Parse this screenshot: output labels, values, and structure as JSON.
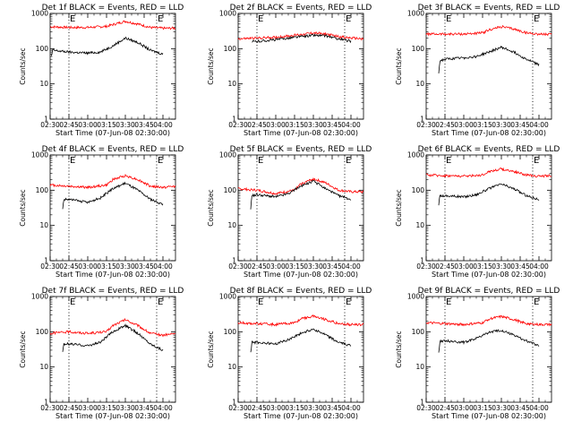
{
  "figure": {
    "colors": {
      "events": "#000000",
      "lld": "#ff0000",
      "axes": "#000000",
      "background": "#ffffff"
    }
  },
  "chart_data": [
    {
      "type": "line",
      "title": "Det 1f BLACK = Events, RED = LLD",
      "xlabel": "Start Time (07-Jun-08 02:30:00)",
      "ylabel": "Counts/sec",
      "yscale": "log",
      "ylim": [
        1,
        1000
      ],
      "xlim": [
        "02:30",
        "04:10"
      ],
      "x_ticks": [
        "02:30",
        "02:45",
        "03:00",
        "03:15",
        "03:30",
        "03:45",
        "04:00"
      ],
      "y_ticks": [
        "1",
        "10",
        "100",
        "1000"
      ],
      "markers": [
        {
          "label": "E",
          "x": "02:45"
        },
        {
          "label": "E",
          "x": "03:55"
        }
      ],
      "grid": false,
      "series": [
        {
          "color": "red",
          "x": [
            "02:30",
            "02:45",
            "03:00",
            "03:15",
            "03:20",
            "03:30",
            "03:40",
            "03:50",
            "04:00",
            "04:10"
          ],
          "values": [
            420,
            400,
            400,
            430,
            480,
            600,
            500,
            400,
            380,
            380
          ]
        },
        {
          "color": "black",
          "x": [
            "02:31",
            "02:32",
            "02:45",
            "03:00",
            "03:10",
            "03:20",
            "03:30",
            "03:40",
            "03:50",
            "04:00"
          ],
          "values": [
            60,
            90,
            80,
            75,
            80,
            120,
            200,
            150,
            90,
            70
          ]
        }
      ]
    },
    {
      "type": "line",
      "title": "Det 2f BLACK = Events, RED = LLD",
      "xlabel": "Start Time (07-Jun-08 02:30:00)",
      "ylabel": "Counts/sec",
      "yscale": "log",
      "ylim": [
        1,
        1000
      ],
      "xlim": [
        "02:30",
        "04:10"
      ],
      "x_ticks": [
        "02:30",
        "02:45",
        "03:00",
        "03:15",
        "03:30",
        "03:45",
        "04:00"
      ],
      "y_ticks": [
        "1",
        "10",
        "100",
        "1000"
      ],
      "markers": [
        {
          "label": "E",
          "x": "02:45"
        },
        {
          "label": "E",
          "x": "03:55"
        }
      ],
      "grid": false,
      "series": [
        {
          "color": "red",
          "x": [
            "02:30",
            "02:45",
            "03:00",
            "03:15",
            "03:30",
            "03:40",
            "03:50",
            "04:00",
            "04:10"
          ],
          "values": [
            190,
            200,
            210,
            240,
            280,
            260,
            220,
            200,
            190
          ]
        },
        {
          "color": "black",
          "x": [
            "02:41",
            "02:42",
            "02:45",
            "03:00",
            "03:15",
            "03:30",
            "03:40",
            "03:50",
            "04:00"
          ],
          "values": [
            150,
            160,
            160,
            180,
            210,
            240,
            230,
            190,
            160
          ]
        }
      ]
    },
    {
      "type": "line",
      "title": "Det 3f BLACK = Events, RED = LLD",
      "xlabel": "Start Time (07-Jun-08 02:30:00)",
      "ylabel": "Counts/sec",
      "yscale": "log",
      "ylim": [
        1,
        1000
      ],
      "xlim": [
        "02:30",
        "04:10"
      ],
      "x_ticks": [
        "02:30",
        "02:45",
        "03:00",
        "03:15",
        "03:30",
        "03:45",
        "04:00"
      ],
      "y_ticks": [
        "1",
        "10",
        "100",
        "1000"
      ],
      "markers": [
        {
          "label": "E",
          "x": "02:45"
        },
        {
          "label": "E",
          "x": "03:55"
        }
      ],
      "grid": false,
      "series": [
        {
          "color": "red",
          "x": [
            "02:30",
            "02:45",
            "03:00",
            "03:15",
            "03:20",
            "03:30",
            "03:40",
            "03:50",
            "04:00",
            "04:10"
          ],
          "values": [
            260,
            260,
            260,
            280,
            340,
            420,
            360,
            280,
            260,
            250
          ]
        },
        {
          "color": "black",
          "x": [
            "02:40",
            "02:41",
            "02:45",
            "03:00",
            "03:10",
            "03:20",
            "03:30",
            "03:40",
            "03:50",
            "04:00"
          ],
          "values": [
            20,
            45,
            50,
            55,
            60,
            80,
            110,
            80,
            50,
            35
          ]
        }
      ]
    },
    {
      "type": "line",
      "title": "Det 4f BLACK = Events, RED = LLD",
      "xlabel": "Start Time (07-Jun-08 02:30:00)",
      "ylabel": "Counts/sec",
      "yscale": "log",
      "ylim": [
        1,
        1000
      ],
      "xlim": [
        "02:30",
        "04:10"
      ],
      "x_ticks": [
        "02:30",
        "02:45",
        "03:00",
        "03:15",
        "03:30",
        "03:45",
        "04:00"
      ],
      "y_ticks": [
        "1",
        "10",
        "100",
        "1000"
      ],
      "markers": [
        {
          "label": "E",
          "x": "02:45"
        },
        {
          "label": "E",
          "x": "03:55"
        }
      ],
      "grid": false,
      "series": [
        {
          "color": "red",
          "x": [
            "02:30",
            "02:45",
            "03:00",
            "03:15",
            "03:20",
            "03:30",
            "03:40",
            "03:50",
            "04:00",
            "04:10"
          ],
          "values": [
            140,
            130,
            120,
            140,
            200,
            260,
            200,
            130,
            120,
            130
          ]
        },
        {
          "color": "black",
          "x": [
            "02:40",
            "02:41",
            "02:45",
            "03:00",
            "03:10",
            "03:20",
            "03:30",
            "03:40",
            "03:50",
            "04:00"
          ],
          "values": [
            30,
            55,
            55,
            45,
            60,
            110,
            160,
            100,
            55,
            40
          ]
        }
      ]
    },
    {
      "type": "line",
      "title": "Det 5f BLACK = Events, RED = LLD",
      "xlabel": "Start Time (07-Jun-08 02:30:00)",
      "ylabel": "Counts/sec",
      "yscale": "log",
      "ylim": [
        1,
        1000
      ],
      "xlim": [
        "02:30",
        "04:10"
      ],
      "x_ticks": [
        "02:30",
        "02:45",
        "03:00",
        "03:15",
        "03:30",
        "03:45",
        "04:00"
      ],
      "y_ticks": [
        "1",
        "10",
        "100",
        "1000"
      ],
      "markers": [
        {
          "label": "E",
          "x": "02:45"
        },
        {
          "label": "E",
          "x": "03:55"
        }
      ],
      "grid": false,
      "series": [
        {
          "color": "red",
          "x": [
            "02:30",
            "02:45",
            "03:00",
            "03:15",
            "03:20",
            "03:30",
            "03:40",
            "03:50",
            "04:00",
            "04:10"
          ],
          "values": [
            110,
            100,
            80,
            100,
            150,
            210,
            160,
            100,
            90,
            90
          ]
        },
        {
          "color": "black",
          "x": [
            "02:40",
            "02:41",
            "02:45",
            "03:00",
            "03:10",
            "03:20",
            "03:30",
            "03:40",
            "03:50",
            "04:00"
          ],
          "values": [
            30,
            70,
            75,
            65,
            80,
            130,
            180,
            110,
            70,
            55
          ]
        }
      ]
    },
    {
      "type": "line",
      "title": "Det 6f BLACK = Events, RED = LLD",
      "xlabel": "Start Time (07-Jun-08 02:30:00)",
      "ylabel": "Counts/sec",
      "yscale": "log",
      "ylim": [
        1,
        1000
      ],
      "xlim": [
        "02:30",
        "04:10"
      ],
      "x_ticks": [
        "02:30",
        "02:45",
        "03:00",
        "03:15",
        "03:30",
        "03:45",
        "04:00"
      ],
      "y_ticks": [
        "1",
        "10",
        "100",
        "1000"
      ],
      "markers": [
        {
          "label": "E",
          "x": "02:45"
        },
        {
          "label": "E",
          "x": "03:55"
        }
      ],
      "grid": false,
      "series": [
        {
          "color": "red",
          "x": [
            "02:30",
            "02:45",
            "03:00",
            "03:15",
            "03:20",
            "03:30",
            "03:40",
            "03:50",
            "04:00",
            "04:10"
          ],
          "values": [
            270,
            260,
            250,
            270,
            340,
            400,
            340,
            270,
            250,
            260
          ]
        },
        {
          "color": "black",
          "x": [
            "02:40",
            "02:41",
            "02:45",
            "03:00",
            "03:10",
            "03:20",
            "03:30",
            "03:40",
            "03:50",
            "04:00"
          ],
          "values": [
            40,
            70,
            70,
            65,
            75,
            110,
            150,
            110,
            70,
            55
          ]
        }
      ]
    },
    {
      "type": "line",
      "title": "Det 7f BLACK = Events, RED = LLD",
      "xlabel": "Start Time (07-Jun-08 02:30:00)",
      "ylabel": "Counts/sec",
      "yscale": "log",
      "ylim": [
        1,
        1000
      ],
      "xlim": [
        "02:30",
        "04:10"
      ],
      "x_ticks": [
        "02:30",
        "02:45",
        "03:00",
        "03:15",
        "03:30",
        "03:45",
        "04:00"
      ],
      "y_ticks": [
        "1",
        "10",
        "100",
        "1000"
      ],
      "markers": [
        {
          "label": "E",
          "x": "02:45"
        },
        {
          "label": "E",
          "x": "03:55"
        }
      ],
      "grid": false,
      "series": [
        {
          "color": "red",
          "x": [
            "02:30",
            "02:45",
            "03:00",
            "03:15",
            "03:20",
            "03:30",
            "03:40",
            "03:50",
            "04:00",
            "04:10"
          ],
          "values": [
            90,
            100,
            90,
            100,
            150,
            220,
            150,
            90,
            80,
            90
          ]
        },
        {
          "color": "black",
          "x": [
            "02:40",
            "02:41",
            "02:45",
            "03:00",
            "03:10",
            "03:20",
            "03:30",
            "03:40",
            "03:50",
            "04:00"
          ],
          "values": [
            25,
            45,
            45,
            40,
            50,
            100,
            150,
            90,
            45,
            30
          ]
        }
      ]
    },
    {
      "type": "line",
      "title": "Det 8f BLACK = Events, RED = LLD",
      "xlabel": "Start Time (07-Jun-08 02:30:00)",
      "ylabel": "Counts/sec",
      "yscale": "log",
      "ylim": [
        1,
        1000
      ],
      "xlim": [
        "02:30",
        "04:10"
      ],
      "x_ticks": [
        "02:30",
        "02:45",
        "03:00",
        "03:15",
        "03:30",
        "03:45",
        "04:00"
      ],
      "y_ticks": [
        "1",
        "10",
        "100",
        "1000"
      ],
      "markers": [
        {
          "label": "E",
          "x": "02:45"
        },
        {
          "label": "E",
          "x": "03:55"
        }
      ],
      "grid": false,
      "series": [
        {
          "color": "red",
          "x": [
            "02:30",
            "02:45",
            "03:00",
            "03:15",
            "03:20",
            "03:30",
            "03:40",
            "03:50",
            "04:00",
            "04:10"
          ],
          "values": [
            180,
            170,
            160,
            180,
            230,
            280,
            220,
            170,
            160,
            160
          ]
        },
        {
          "color": "black",
          "x": [
            "02:40",
            "02:41",
            "02:45",
            "03:00",
            "03:10",
            "03:20",
            "03:30",
            "03:40",
            "03:50",
            "04:00"
          ],
          "values": [
            25,
            50,
            50,
            45,
            60,
            90,
            120,
            80,
            50,
            40
          ]
        }
      ]
    },
    {
      "type": "line",
      "title": "Det 9f BLACK = Events, RED = LLD",
      "xlabel": "Start Time (07-Jun-08 02:30:00)",
      "ylabel": "Counts/sec",
      "yscale": "log",
      "ylim": [
        1,
        1000
      ],
      "xlim": [
        "02:30",
        "04:10"
      ],
      "x_ticks": [
        "02:30",
        "02:45",
        "03:00",
        "03:15",
        "03:30",
        "03:45",
        "04:00"
      ],
      "y_ticks": [
        "1",
        "10",
        "100",
        "1000"
      ],
      "markers": [
        {
          "label": "E",
          "x": "02:45"
        },
        {
          "label": "E",
          "x": "03:55"
        }
      ],
      "grid": false,
      "series": [
        {
          "color": "red",
          "x": [
            "02:30",
            "02:45",
            "03:00",
            "03:15",
            "03:20",
            "03:30",
            "03:40",
            "03:50",
            "04:00",
            "04:10"
          ],
          "values": [
            180,
            170,
            160,
            180,
            230,
            270,
            220,
            170,
            160,
            160
          ]
        },
        {
          "color": "black",
          "x": [
            "02:40",
            "02:41",
            "02:45",
            "03:00",
            "03:10",
            "03:20",
            "03:30",
            "03:40",
            "03:50",
            "04:00"
          ],
          "values": [
            25,
            55,
            55,
            50,
            65,
            95,
            110,
            80,
            55,
            40
          ]
        }
      ]
    }
  ]
}
